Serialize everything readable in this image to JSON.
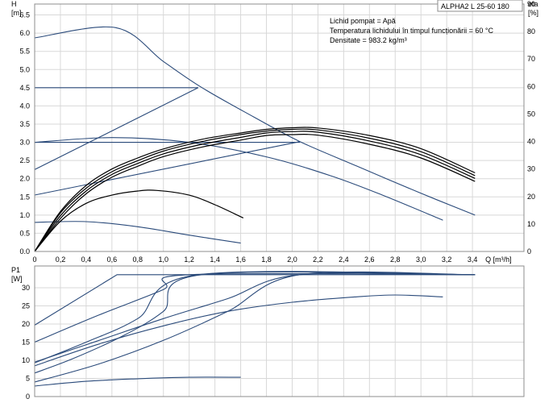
{
  "model_label": "ALPHA2 L 25-60 180",
  "info_lines": [
    "Lichid pompat = Apă",
    "Temperatura lichidului în timpul funcționării = 60 °C",
    "Densitate = 983.2 kg/m³"
  ],
  "colors": {
    "hq": "#2a4a7a",
    "eta": "#000000",
    "p1": "#2a4a7a",
    "grid": "#d8d8d8",
    "frame": "#8c8c8c"
  },
  "chart_data": [
    {
      "type": "line",
      "id": "hq",
      "ylabel": "H",
      "yunit": "[m]",
      "y2label": "eta",
      "y2unit": "[%]",
      "xlabel": "Q [m³/h]",
      "xlim": [
        0,
        3.8
      ],
      "ylim": [
        0,
        6.8
      ],
      "y2lim": [
        0,
        90
      ],
      "grid": true,
      "x_ticks": [
        "0",
        "0,2",
        "0,4",
        "0,6",
        "0,8",
        "1,0",
        "1,2",
        "1,4",
        "1,6",
        "1,8",
        "2,0",
        "2,2",
        "2,4",
        "2,6",
        "2,8",
        "3,0",
        "3,2",
        "3,4",
        "Q [m³/h]"
      ],
      "y_ticks": [
        "0.0",
        "0.5",
        "1.0",
        "1.5",
        "2.0",
        "2.5",
        "3.0",
        "3.5",
        "4.0",
        "4.5",
        "5.0",
        "5.5",
        "6.0",
        "6.5"
      ],
      "y2_ticks": [
        "0",
        "10",
        "20",
        "30",
        "40",
        "50",
        "60",
        "70",
        "80",
        "90"
      ],
      "series": [
        {
          "axis": "h",
          "role": "head",
          "x": [
            0,
            0.63,
            1.0,
            1.3,
            1.7,
            2.06,
            2.5,
            3.0,
            3.42
          ],
          "y": [
            5.87,
            6.15,
            5.22,
            4.5,
            3.7,
            3.02,
            2.35,
            1.6,
            1.0
          ]
        },
        {
          "axis": "h",
          "role": "head",
          "x": [
            0,
            1.27
          ],
          "y": [
            4.5,
            4.5
          ]
        },
        {
          "axis": "h",
          "role": "head",
          "x": [
            0,
            1.27
          ],
          "y": [
            2.25,
            4.5
          ]
        },
        {
          "axis": "h",
          "role": "head",
          "x": [
            0,
            2.06
          ],
          "y": [
            3.0,
            3.0
          ]
        },
        {
          "axis": "h",
          "role": "head",
          "x": [
            0,
            2.06
          ],
          "y": [
            1.55,
            3.02
          ]
        },
        {
          "axis": "h",
          "role": "head",
          "x": [
            0,
            0.6,
            1.2,
            1.8,
            2.3,
            2.7,
            3.17
          ],
          "y": [
            3.0,
            3.13,
            3.0,
            2.6,
            2.08,
            1.55,
            0.86
          ]
        },
        {
          "axis": "h",
          "role": "head",
          "x": [
            0,
            0.4,
            0.8,
            1.2,
            1.6
          ],
          "y": [
            0.8,
            0.82,
            0.68,
            0.45,
            0.23
          ]
        },
        {
          "axis": "eta",
          "role": "eta",
          "x": [
            0,
            0.2,
            0.4,
            0.6,
            0.8,
            1.0,
            1.3,
            1.6,
            1.8,
            2.0,
            2.2,
            2.6,
            3.0,
            3.42
          ],
          "y": [
            0,
            12,
            21,
            27,
            31,
            34.5,
            38,
            40.5,
            42.2,
            42.5,
            42.3,
            39,
            34,
            25.5
          ]
        },
        {
          "axis": "eta",
          "role": "eta",
          "x": [
            0,
            0.2,
            0.4,
            0.6,
            0.8,
            1.0,
            1.3,
            1.6,
            1.8,
            2.0,
            2.2,
            2.6,
            3.0,
            3.42
          ],
          "y": [
            0,
            13,
            22,
            28,
            32,
            35.5,
            39,
            41.5,
            43.1,
            43.6,
            43.4,
            40.2,
            35.2,
            26.6
          ]
        },
        {
          "axis": "eta",
          "role": "eta",
          "x": [
            0,
            0.2,
            0.4,
            0.6,
            0.8,
            1.0,
            1.3,
            1.6,
            1.8,
            2.0,
            2.2,
            2.6,
            3.0,
            3.42
          ],
          "y": [
            0,
            14,
            23,
            29,
            33,
            36.5,
            40,
            42.5,
            43.8,
            44.4,
            44.2,
            41.2,
            36.3,
            27.6
          ]
        },
        {
          "axis": "eta",
          "role": "eta",
          "x": [
            0,
            0.2,
            0.4,
            0.6,
            0.8,
            1.0,
            1.3,
            1.6,
            1.8,
            2.0,
            2.2,
            2.6,
            3.0,
            3.42
          ],
          "y": [
            0,
            14.5,
            24,
            30,
            34,
            37.3,
            40.8,
            43.1,
            44.4,
            45.0,
            44.9,
            42.2,
            37.4,
            28.6
          ]
        },
        {
          "axis": "eta",
          "role": "eta",
          "x": [
            0,
            0.2,
            0.4,
            0.6,
            0.8,
            0.95,
            1.2,
            1.4,
            1.62
          ],
          "y": [
            0,
            11,
            17.5,
            20.5,
            22.0,
            22.2,
            20.5,
            17,
            12.2
          ]
        }
      ]
    },
    {
      "type": "line",
      "id": "p1",
      "ylabel": "P1",
      "yunit": "[W]",
      "xlim": [
        0,
        3.8
      ],
      "ylim": [
        0,
        36
      ],
      "grid": true,
      "y_ticks": [
        "0",
        "5",
        "10",
        "15",
        "20",
        "25",
        "30"
      ],
      "series": [
        {
          "x": [
            0,
            0.64,
            3.42
          ],
          "y": [
            19.7,
            33.6,
            33.6
          ]
        },
        {
          "x": [
            0,
            0.4,
            0.8,
            1.27,
            3.42
          ],
          "y": [
            9.3,
            15.0,
            21.5,
            33.6,
            33.6
          ]
        },
        {
          "x": [
            0,
            0.3,
            0.7,
            1.0,
            1.3,
            3.42
          ],
          "y": [
            6.5,
            10.5,
            17,
            23.5,
            33.6,
            33.6
          ]
        },
        {
          "x": [
            0,
            0.5,
            1.0,
            1.5,
            2.06,
            3.42
          ],
          "y": [
            9.5,
            15.5,
            21.5,
            27,
            33.6,
            33.6
          ]
        },
        {
          "x": [
            0,
            0.5,
            1.0,
            1.5,
            2.06,
            3.42
          ],
          "y": [
            4.0,
            9.0,
            15.5,
            23.5,
            33.6,
            33.6
          ]
        },
        {
          "x": [
            0,
            0.5,
            1.0,
            1.2,
            3.42
          ],
          "y": [
            15,
            22.5,
            29.5,
            33.6,
            33.6
          ]
        },
        {
          "x": [
            0,
            0.5,
            1.0,
            1.5,
            2.0,
            2.5,
            2.8,
            3.17
          ],
          "y": [
            8.5,
            14.5,
            19.5,
            23.5,
            26.0,
            27.5,
            28.0,
            27.5
          ]
        },
        {
          "x": [
            0,
            0.4,
            0.8,
            1.2,
            1.6
          ],
          "y": [
            2.9,
            4.2,
            4.9,
            5.3,
            5.3
          ]
        }
      ]
    }
  ]
}
